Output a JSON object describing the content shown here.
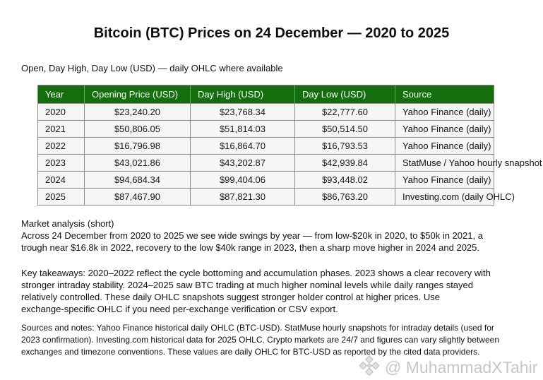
{
  "page": {
    "title": "Bitcoin (BTC) Prices on 24 December — 2020 to 2025",
    "subtitle": "Open, Day High, Day Low (USD) — daily OHLC where available"
  },
  "colors": {
    "header_green": "#146e0e",
    "row_bg": "#f5f5f5",
    "cell_border": "#8c8c8c",
    "watermark_gray": "#c6c6c6"
  },
  "table": {
    "columns": [
      "Year",
      "Opening Price (USD)",
      "Day High (USD)",
      "Day Low (USD)",
      "Source"
    ],
    "rows": [
      [
        "2020",
        "$23,240.20",
        "$23,768.34",
        "$22,777.60",
        "Yahoo Finance (daily)"
      ],
      [
        "2021",
        "$50,806.05",
        "$51,814.03",
        "$50,514.50",
        "Yahoo Finance (daily)"
      ],
      [
        "2022",
        "$16,796.98",
        "$16,864.70",
        "$16,793.53",
        "Yahoo Finance (daily)"
      ],
      [
        "2023",
        "$43,021.86",
        "$43,202.87",
        "$42,939.84",
        "StatMuse / Yahoo hourly snapshot"
      ],
      [
        "2024",
        "$94,684.34",
        "$99,404.06",
        "$93,448.02",
        "Yahoo Finance (daily)"
      ],
      [
        "2025",
        "$87,467.90",
        "$87,821.30",
        "$86,763.20",
        "Investing.com (daily OHLC)"
      ]
    ]
  },
  "analysis": {
    "heading": "Market analysis (short)",
    "body": "Across 24 December from 2020 to 2025 we see wide swings by year — from low-$20k in 2020, to $50k in 2021, a\ntrough near $16.8k in 2022, recovery to the low $40k range in 2023, then a sharp move higher in 2024 and 2025.",
    "takeaways": "Key takeaways: 2020–2022 reflect the cycle bottoming and accumulation phases. 2023 shows a clear recovery with\nstronger intraday stability. 2024–2025 saw BTC trading at much higher nominal levels while daily ranges stayed\nrelatively controlled. These daily OHLC snapshots suggest stronger holder control at higher prices. Use\nexchange-specific OHLC if you need per-exchange verification or CSV export.",
    "sources": "Sources and notes: Yahoo Finance historical daily OHLC (BTC-USD). StatMuse hourly snapshots for intraday details (used for\n2023 confirmation). Investing.com historical data for 2025 OHLC. Crypto markets are 24/7 and figures can vary slightly between\nexchanges and timezone conventions. These values are daily OHLC for BTC-USD as reported by the cited data providers."
  },
  "watermark": {
    "icon": "gem-diamonds-icon",
    "text": "@ MuhammadXTahir"
  }
}
